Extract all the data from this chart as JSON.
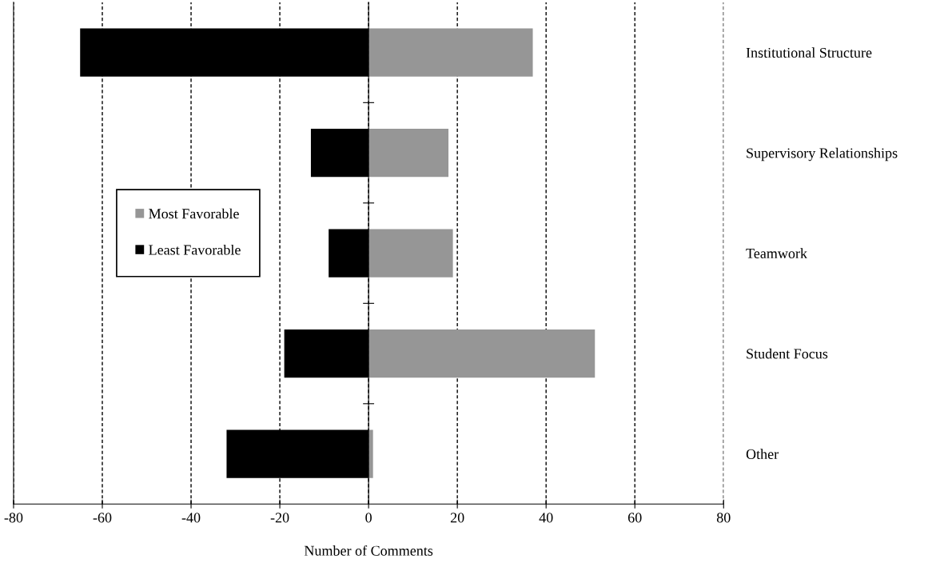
{
  "chart_data": {
    "type": "bar",
    "orientation": "horizontal",
    "xlabel": "Number of Comments",
    "categories": [
      "Institutional Structure",
      "Supervisory Relationships",
      "Teamwork",
      "Student Focus",
      "Other"
    ],
    "series": [
      {
        "name": "Least Favorable",
        "color": "#000000",
        "values": [
          -65,
          -13,
          -9,
          -19,
          -32
        ]
      },
      {
        "name": "Most Favorable",
        "color": "#969696",
        "values": [
          37,
          18,
          19,
          51,
          1
        ]
      }
    ],
    "xlim": [
      -80,
      80
    ],
    "xticks": [
      -80,
      -60,
      -40,
      -20,
      0,
      20,
      40,
      60,
      80
    ],
    "stacked": true,
    "grid": "x",
    "legend": "left"
  }
}
